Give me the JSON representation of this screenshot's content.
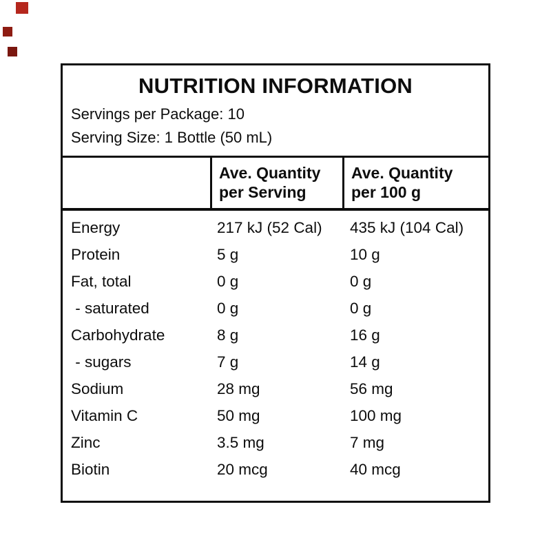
{
  "decor": {
    "squares": [
      {
        "name": "red-square-1",
        "color": "#b5271d"
      },
      {
        "name": "red-square-2",
        "color": "#8e1c12"
      },
      {
        "name": "red-square-3",
        "color": "#7a170f"
      }
    ]
  },
  "label": {
    "title": "NUTRITION INFORMATION",
    "servings_per_package": "Servings per Package: 10",
    "serving_size": "Serving Size: 1 Bottle (50 mL)",
    "header": {
      "col_serving_line1": "Ave. Quantity",
      "col_serving_line2": "per Serving",
      "col_100g_line1": "Ave. Quantity",
      "col_100g_line2": "per 100 g"
    },
    "rows": [
      {
        "name": "Energy",
        "per_serving": "217 kJ (52 Cal)",
        "per_100g": "435 kJ (104 Cal)"
      },
      {
        "name": "Protein",
        "per_serving": "5 g",
        "per_100g": "10 g"
      },
      {
        "name": "Fat, total",
        "per_serving": "0 g",
        "per_100g": "0 g"
      },
      {
        "name": " - saturated",
        "per_serving": "0 g",
        "per_100g": "0 g"
      },
      {
        "name": "Carbohydrate",
        "per_serving": "8 g",
        "per_100g": "16 g"
      },
      {
        "name": " - sugars",
        "per_serving": "7 g",
        "per_100g": "14 g"
      },
      {
        "name": "Sodium",
        "per_serving": "28 mg",
        "per_100g": "56 mg"
      },
      {
        "name": "Vitamin C",
        "per_serving": "50 mg",
        "per_100g": "100 mg"
      },
      {
        "name": "Zinc",
        "per_serving": "3.5 mg",
        "per_100g": "7 mg"
      },
      {
        "name": "Biotin",
        "per_serving": "20 mcg",
        "per_100g": "40 mcg"
      }
    ]
  }
}
